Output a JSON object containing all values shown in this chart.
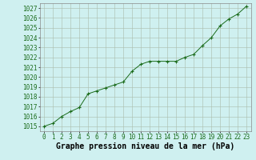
{
  "x": [
    0,
    1,
    2,
    3,
    4,
    5,
    6,
    7,
    8,
    9,
    10,
    11,
    12,
    13,
    14,
    15,
    16,
    17,
    18,
    19,
    20,
    21,
    22,
    23
  ],
  "y": [
    1015.0,
    1015.3,
    1016.0,
    1016.5,
    1016.9,
    1018.3,
    1018.6,
    1018.9,
    1019.2,
    1019.5,
    1020.6,
    1021.3,
    1021.6,
    1021.6,
    1021.6,
    1021.6,
    1022.0,
    1022.3,
    1023.2,
    1024.0,
    1025.2,
    1025.9,
    1026.4,
    1027.2
  ],
  "xlim": [
    -0.5,
    23.5
  ],
  "ylim": [
    1014.5,
    1027.5
  ],
  "yticks": [
    1015,
    1016,
    1017,
    1018,
    1019,
    1020,
    1021,
    1022,
    1023,
    1024,
    1025,
    1026,
    1027
  ],
  "xticks": [
    0,
    1,
    2,
    3,
    4,
    5,
    6,
    7,
    8,
    9,
    10,
    11,
    12,
    13,
    14,
    15,
    16,
    17,
    18,
    19,
    20,
    21,
    22,
    23
  ],
  "xlabel": "Graphe pression niveau de la mer (hPa)",
  "line_color": "#1a6b1a",
  "marker": "+",
  "bg_color": "#cff0f0",
  "grid_color": "#aabbaa",
  "tick_fontsize": 5.5,
  "xlabel_fontsize": 7
}
